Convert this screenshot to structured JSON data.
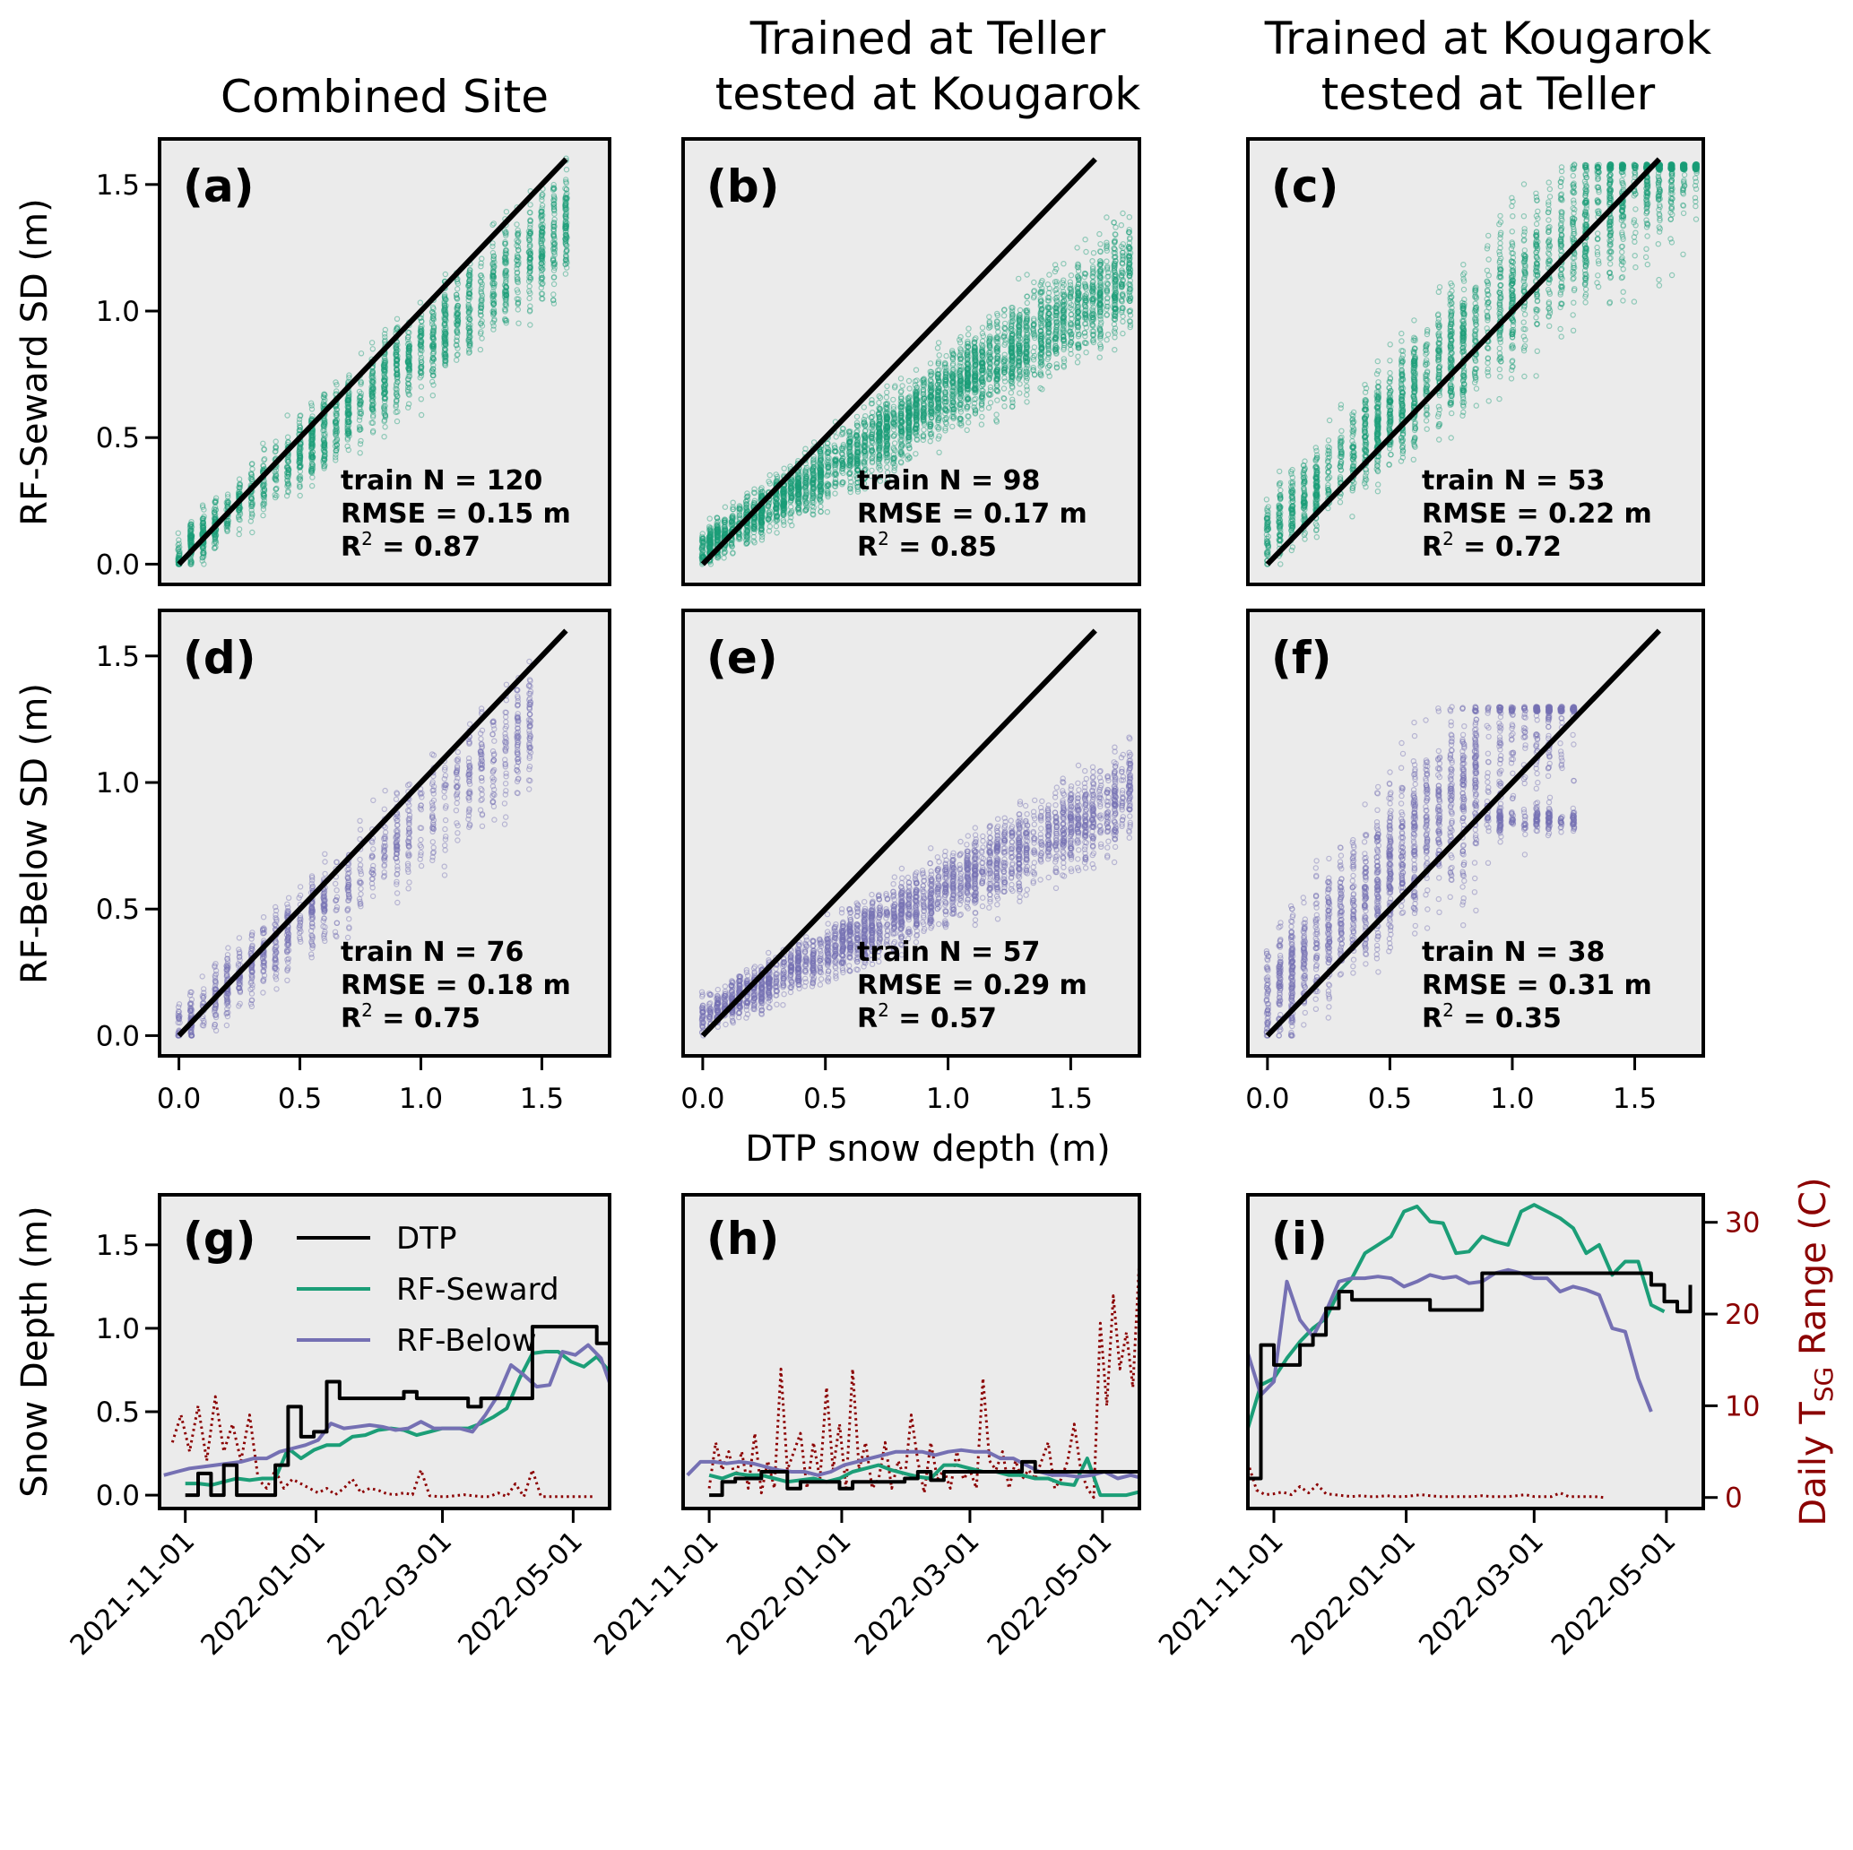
{
  "figure": {
    "column_titles": [
      [
        "Combined Site"
      ],
      [
        "Trained at Teller",
        "tested at Kougarok"
      ],
      [
        "Trained at Kougarok",
        "tested at Teller"
      ]
    ],
    "scatter_xlabel": "DTP snow depth (m)",
    "colors": {
      "seward": "#1b9e77",
      "below": "#7570b3",
      "dtp": "#000000",
      "tsg": "#8b0000",
      "axes_bg": "#ebebeb"
    }
  },
  "chart_data": [
    {
      "type": "scatter",
      "panel": "(a)",
      "row_ylabel": "RF-Seward SD (m)",
      "series": "RF-Seward",
      "color": "#1b9e77",
      "xlim": [
        -0.08,
        1.78
      ],
      "ylim": [
        -0.08,
        1.68
      ],
      "xticks": [
        "0.0",
        "0.5",
        "1.0",
        "1.5"
      ],
      "yticks": [
        "0.0",
        "0.5",
        "1.0",
        "1.5"
      ],
      "one_to_one_line": [
        0,
        1.6
      ],
      "stats": {
        "train_n": "train N = 120",
        "rmse": "RMSE = 0.15 m",
        "r2_value": " = 0.87"
      },
      "distribution": {
        "x_max": 1.6,
        "x_step": 0.05,
        "slope": 0.82,
        "intercept": 0.03,
        "spread": 0.12,
        "n_per_column": 70,
        "seed": 11
      }
    },
    {
      "type": "scatter",
      "panel": "(b)",
      "series": "RF-Seward",
      "color": "#1b9e77",
      "xlim": [
        -0.08,
        1.78
      ],
      "ylim": [
        -0.08,
        1.68
      ],
      "xticks": [
        "0.0",
        "0.5",
        "1.0",
        "1.5"
      ],
      "yticks": [],
      "one_to_one_line": [
        0,
        1.6
      ],
      "stats": {
        "train_n": "train N = 98",
        "rmse": "RMSE = 0.17 m",
        "r2_value": " = 0.85"
      },
      "distribution": {
        "x_max": 1.75,
        "x_step": 0.03,
        "slope": 0.62,
        "intercept": 0.06,
        "spread": 0.11,
        "n_per_column": 75,
        "seed": 23
      }
    },
    {
      "type": "scatter",
      "panel": "(c)",
      "series": "RF-Seward",
      "color": "#1b9e77",
      "xlim": [
        -0.08,
        1.78
      ],
      "ylim": [
        -0.08,
        1.68
      ],
      "xticks": [
        "0.0",
        "0.5",
        "1.0",
        "1.5"
      ],
      "yticks": [],
      "one_to_one_line": [
        0,
        1.6
      ],
      "stats": {
        "train_n": "train N = 53",
        "rmse": "RMSE = 0.22 m",
        "r2_value": " = 0.72"
      },
      "distribution": {
        "x_max": 1.8,
        "x_step": 0.05,
        "slope": 0.95,
        "intercept": 0.12,
        "spread": 0.2,
        "n_per_column": 90,
        "seed": 37,
        "cap": 1.58
      }
    },
    {
      "type": "scatter",
      "panel": "(d)",
      "row_ylabel": "RF-Below SD (m)",
      "series": "RF-Below",
      "color": "#7570b3",
      "xlim": [
        -0.08,
        1.78
      ],
      "ylim": [
        -0.08,
        1.68
      ],
      "xticks": [
        "0.0",
        "0.5",
        "1.0",
        "1.5"
      ],
      "yticks": [
        "0.0",
        "0.5",
        "1.0",
        "1.5"
      ],
      "one_to_one_line": [
        0,
        1.6
      ],
      "stats": {
        "train_n": "train N = 76",
        "rmse": "RMSE = 0.18 m",
        "r2_value": " = 0.75"
      },
      "distribution": {
        "x_max": 1.45,
        "x_step": 0.05,
        "slope": 0.82,
        "intercept": 0.03,
        "spread": 0.14,
        "n_per_column": 45,
        "seed": 41
      }
    },
    {
      "type": "scatter",
      "panel": "(e)",
      "series": "RF-Below",
      "color": "#7570b3",
      "xlim": [
        -0.08,
        1.78
      ],
      "ylim": [
        -0.08,
        1.68
      ],
      "xticks": [
        "0.0",
        "0.5",
        "1.0",
        "1.5"
      ],
      "yticks": [],
      "one_to_one_line": [
        0,
        1.6
      ],
      "stats": {
        "train_n": "train N = 57",
        "rmse": "RMSE = 0.29 m",
        "r2_value": " = 0.57"
      },
      "distribution": {
        "x_max": 1.75,
        "x_step": 0.03,
        "slope": 0.5,
        "intercept": 0.08,
        "spread": 0.1,
        "n_per_column": 60,
        "seed": 53
      }
    },
    {
      "type": "scatter",
      "panel": "(f)",
      "series": "RF-Below",
      "color": "#7570b3",
      "xlim": [
        -0.08,
        1.78
      ],
      "ylim": [
        -0.08,
        1.68
      ],
      "xticks": [
        "0.0",
        "0.5",
        "1.0",
        "1.5"
      ],
      "yticks": [],
      "one_to_one_line": [
        0,
        1.6
      ],
      "stats": {
        "train_n": "train N = 38",
        "rmse": "RMSE = 0.31 m",
        "r2_value": " = 0.35"
      },
      "distribution": {
        "x_max": 1.28,
        "x_step": 0.05,
        "slope": 1.05,
        "intercept": 0.15,
        "spread": 0.3,
        "n_per_column": 90,
        "seed": 67,
        "cap": 1.3,
        "plateau": 0.85
      }
    },
    {
      "type": "line",
      "panel": "(g)",
      "row_ylabel": "Snow Depth (m)",
      "ylim": [
        -0.08,
        1.8
      ],
      "yticks": [
        "0.0",
        "0.5",
        "1.0",
        "1.5"
      ],
      "xticks": [
        "2021-11-01",
        "2022-01-01",
        "2022-03-01",
        "2022-05-01"
      ],
      "x_range_days": [
        -12,
        198
      ],
      "legend": [
        "DTP",
        "RF-Seward",
        "RF-Below"
      ],
      "series": [
        {
          "name": "DTP",
          "color": "#000000",
          "start_day": 0,
          "step_days": 6,
          "values": [
            0.0,
            0.13,
            0.0,
            0.18,
            0.0,
            0.0,
            0.0,
            0.18,
            0.53,
            0.35,
            0.38,
            0.68,
            0.58,
            0.58,
            0.58,
            0.58,
            0.58,
            0.62,
            0.58,
            0.58,
            0.58,
            0.58,
            0.53,
            0.58,
            0.58,
            0.58,
            0.58,
            1.01,
            1.01,
            1.01,
            1.01,
            1.01,
            0.91,
            0.91,
            0.91,
            0.91,
            0.8,
            0.68,
            0.72,
            0.64,
            0.64,
            0.58
          ]
        },
        {
          "name": "RF-Seward",
          "color": "#1b9e77",
          "start_day": 0,
          "step_days": 6,
          "values": [
            0.07,
            0.07,
            0.06,
            0.08,
            0.1,
            0.09,
            0.1,
            0.1,
            0.28,
            0.22,
            0.27,
            0.3,
            0.3,
            0.35,
            0.36,
            0.39,
            0.4,
            0.39,
            0.36,
            0.38,
            0.4,
            0.4,
            0.4,
            0.43,
            0.47,
            0.52,
            0.7,
            0.85,
            0.86,
            0.86,
            0.8,
            0.77,
            0.83,
            0.74,
            0.76,
            0.74,
            0.62,
            0.83,
            0.52,
            0.47,
            0.5,
            0.4
          ]
        },
        {
          "name": "RF-Below",
          "color": "#7570b3",
          "start_day": -10,
          "step_days": 6,
          "values": [
            0.12,
            0.14,
            0.16,
            0.17,
            0.18,
            0.19,
            0.2,
            0.22,
            0.22,
            0.26,
            0.28,
            0.3,
            0.33,
            0.43,
            0.4,
            0.41,
            0.42,
            0.41,
            0.39,
            0.4,
            0.44,
            0.4,
            0.4,
            0.4,
            0.38,
            0.48,
            0.6,
            0.78,
            0.72,
            0.65,
            0.66,
            0.86,
            0.84,
            0.9,
            0.82,
            0.6,
            0.48,
            0.31,
            0.15,
            0.18,
            0.05,
            0.02,
            0.04,
            0.05
          ]
        },
        {
          "name": "Daily TSG Range",
          "color": "#8b0000",
          "axis": "right",
          "style": "dotted",
          "start_day": -6,
          "step_days": 4,
          "values": [
            6,
            9,
            5,
            10,
            4,
            11,
            5,
            8,
            4,
            9,
            2,
            1,
            3,
            1,
            2,
            1.5,
            1,
            0.5,
            1,
            0.3,
            1,
            2,
            0.5,
            1,
            0.8,
            0.4,
            0.3,
            0.5,
            0.3,
            3,
            0.2,
            0.1,
            0.1,
            0.2,
            0.3,
            0.2,
            0.1,
            0.1,
            0.5,
            0.1,
            1.5,
            0.1,
            3,
            0.1,
            0.1,
            0.1,
            0.1,
            0.1,
            0.1,
            0.1
          ]
        }
      ]
    },
    {
      "type": "line",
      "panel": "(h)",
      "ylim": [
        -0.08,
        1.8
      ],
      "yticks": [],
      "xticks": [
        "2021-11-01",
        "2022-01-01",
        "2022-03-01",
        "2022-05-01"
      ],
      "x_range_days": [
        -12,
        198
      ],
      "series": [
        {
          "name": "DTP",
          "color": "#000000",
          "start_day": 0,
          "step_days": 6,
          "values": [
            0.0,
            0.08,
            0.1,
            0.1,
            0.14,
            0.14,
            0.04,
            0.08,
            0.08,
            0.08,
            0.04,
            0.08,
            0.08,
            0.08,
            0.08,
            0.1,
            0.14,
            0.09,
            0.14,
            0.14,
            0.14,
            0.14,
            0.14,
            0.14,
            0.2,
            0.14,
            0.14,
            0.14,
            0.14,
            0.14,
            0.14,
            0.14,
            0.14,
            0.0,
            0.0,
            0.0,
            0.0,
            0.0
          ]
        },
        {
          "name": "RF-Seward",
          "color": "#1b9e77",
          "start_day": 0,
          "step_days": 6,
          "values": [
            0.12,
            0.1,
            0.13,
            0.12,
            0.12,
            0.1,
            0.08,
            0.09,
            0.1,
            0.08,
            0.1,
            0.14,
            0.16,
            0.18,
            0.15,
            0.13,
            0.11,
            0.1,
            0.18,
            0.18,
            0.16,
            0.14,
            0.14,
            0.12,
            0.12,
            0.1,
            0.1,
            0.07,
            0.06,
            0.22,
            0.0,
            0.0,
            0.0,
            0.02,
            0.0
          ]
        },
        {
          "name": "RF-Below",
          "color": "#7570b3",
          "start_day": -10,
          "step_days": 6,
          "values": [
            0.12,
            0.2,
            0.2,
            0.19,
            0.2,
            0.19,
            0.17,
            0.15,
            0.14,
            0.14,
            0.12,
            0.14,
            0.18,
            0.2,
            0.22,
            0.24,
            0.26,
            0.26,
            0.26,
            0.24,
            0.26,
            0.27,
            0.26,
            0.26,
            0.22,
            0.22,
            0.18,
            0.14,
            0.12,
            0.12,
            0.11,
            0.12,
            0.14,
            0.1,
            0.12,
            0.1,
            0.06,
            0.05
          ]
        },
        {
          "name": "Daily TSG Range",
          "color": "#8b0000",
          "axis": "right",
          "style": "dotted",
          "start_day": 0,
          "step_days": 3,
          "values": [
            1,
            6,
            3,
            5,
            2,
            5,
            1,
            7,
            0.5,
            4,
            1,
            14,
            3,
            5,
            7,
            1,
            6,
            2,
            12,
            3,
            8,
            1,
            14,
            3,
            6,
            1,
            2,
            6,
            1,
            4,
            2,
            9,
            4,
            0.5,
            6,
            2,
            3,
            1,
            5,
            2,
            3,
            1,
            13,
            4,
            3,
            5,
            1,
            4,
            2,
            3,
            2,
            4,
            6,
            1,
            2,
            4,
            8,
            3,
            1,
            0,
            19,
            10,
            22,
            14,
            18,
            12,
            26,
            18,
            9,
            12,
            3,
            17,
            12
          ]
        }
      ]
    },
    {
      "type": "line",
      "panel": "(i)",
      "ylim": [
        -0.08,
        1.8
      ],
      "yticks": [],
      "right_ylabel": "Daily TSG Range (C)",
      "right_ylim": [
        -1.2,
        33
      ],
      "right_yticks": [
        "0",
        "10",
        "20",
        "30"
      ],
      "xticks": [
        "2021-11-01",
        "2022-01-01",
        "2022-03-01",
        "2022-05-01"
      ],
      "x_range_days": [
        -12,
        198
      ],
      "series": [
        {
          "name": "DTP",
          "color": "#000000",
          "start_day": -60,
          "step_days": 6,
          "values": [
            0.3,
            0.55,
            0.52,
            0.52,
            0.52,
            0.52,
            0.52,
            0.1,
            0.1,
            0.9,
            0.78,
            0.78,
            0.9,
            0.96,
            1.12,
            1.22,
            1.17,
            1.17,
            1.17,
            1.17,
            1.17,
            1.17,
            1.11,
            1.11,
            1.11,
            1.11,
            1.33,
            1.33,
            1.33,
            1.33,
            1.33,
            1.33,
            1.33,
            1.33,
            1.33,
            1.33,
            1.33,
            1.33,
            1.33,
            1.26,
            1.16,
            1.1,
            1.26
          ]
        },
        {
          "name": "RF-Seward",
          "color": "#1b9e77",
          "start_day": -60,
          "step_days": 6,
          "values": [
            0.3,
            0.36,
            0.36,
            0.36,
            0.38,
            0.38,
            0.4,
            0.4,
            0.4,
            0.66,
            0.7,
            0.82,
            0.92,
            1.0,
            1.06,
            1.22,
            1.3,
            1.45,
            1.5,
            1.55,
            1.7,
            1.73,
            1.64,
            1.63,
            1.45,
            1.46,
            1.55,
            1.52,
            1.5,
            1.7,
            1.74,
            1.7,
            1.66,
            1.6,
            1.45,
            1.5,
            1.32,
            1.4,
            1.4,
            1.14,
            1.1
          ]
        },
        {
          "name": "RF-Below",
          "color": "#7570b3",
          "start_day": -60,
          "step_days": 6,
          "values": [
            0.58,
            0.7,
            0.7,
            0.55,
            0.45,
            0.4,
            0.42,
            0.88,
            0.85,
            0.6,
            0.68,
            1.28,
            1.05,
            0.95,
            1.1,
            1.28,
            1.3,
            1.3,
            1.31,
            1.3,
            1.25,
            1.28,
            1.32,
            1.3,
            1.31,
            1.27,
            1.28,
            1.33,
            1.35,
            1.33,
            1.3,
            1.3,
            1.22,
            1.25,
            1.23,
            1.2,
            1.0,
            0.98,
            0.7,
            0.5
          ]
        },
        {
          "name": "Daily TSG Range",
          "color": "#8b0000",
          "axis": "right",
          "style": "dotted",
          "start_day": -60,
          "step_days": 4,
          "values": [
            2.3,
            0.5,
            0.4,
            0.3,
            0.4,
            0.5,
            0.3,
            0.2,
            3.8,
            2.5,
            3.2,
            2.0,
            3.8,
            0.8,
            0.3,
            0.4,
            0.6,
            0.3,
            1.2,
            0.5,
            1.4,
            0.4,
            0.3,
            0.2,
            0.1,
            0.2,
            0.1,
            0.1,
            0.2,
            0.1,
            0.1,
            0.2,
            0.3,
            0.2,
            0.1,
            0.1,
            0.1,
            0.1,
            0.1,
            0.2,
            0.1,
            0.1,
            0.1,
            0.2,
            0.3,
            0.1,
            0.1,
            0.1,
            0.5,
            0.1,
            0.1,
            0.1,
            0.1,
            0.0
          ]
        }
      ]
    }
  ]
}
